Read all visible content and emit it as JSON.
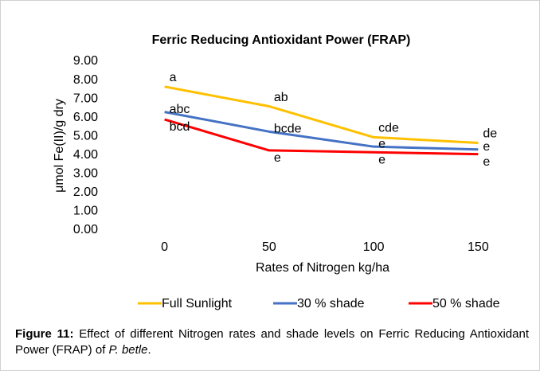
{
  "chart_data": {
    "type": "line",
    "title": "Ferric Reducing Antioxidant Power (FRAP)",
    "x_label": "Rates of Nitrogen kg/ha",
    "y_label": "μmol Fe(II)/g dry",
    "categories": [
      "0",
      "50",
      "100",
      "150"
    ],
    "series": [
      {
        "name": "Full Sunlight",
        "color": "#ffc000",
        "values": [
          7.65,
          6.6,
          4.95,
          4.65
        ],
        "letters": [
          "a",
          "ab",
          "cde",
          "de"
        ]
      },
      {
        "name": "30 % shade",
        "color": "#4472c4",
        "values": [
          6.3,
          5.25,
          4.45,
          4.3
        ],
        "letters": [
          "abc",
          "bcde",
          "e",
          "e"
        ]
      },
      {
        "name": "50 % shade",
        "color": "#ff0000",
        "values": [
          5.9,
          4.25,
          4.15,
          4.05
        ],
        "letters": [
          "bcd",
          "e",
          "e",
          "e"
        ]
      }
    ],
    "ylim": [
      0,
      9
    ],
    "yticks": [
      {
        "value": 0,
        "label": "0.00"
      },
      {
        "value": 1,
        "label": "1.00"
      },
      {
        "value": 2,
        "label": "2.00"
      },
      {
        "value": 3,
        "label": "3.00"
      },
      {
        "value": 4,
        "label": "4.00"
      },
      {
        "value": 5,
        "label": "5.00"
      },
      {
        "value": 6,
        "label": "6.00"
      },
      {
        "value": 7,
        "label": "7.00"
      },
      {
        "value": 8,
        "label": "8.00"
      },
      {
        "value": 9,
        "label": "9.00"
      }
    ],
    "grid": false,
    "legend": "bottom"
  },
  "caption": {
    "label": "Figure 11:",
    "text": "Effect of different Nitrogen rates and shade levels on Ferric Reducing Antioxidant Power (FRAP) of ",
    "species": "P. betle",
    "end": "."
  }
}
